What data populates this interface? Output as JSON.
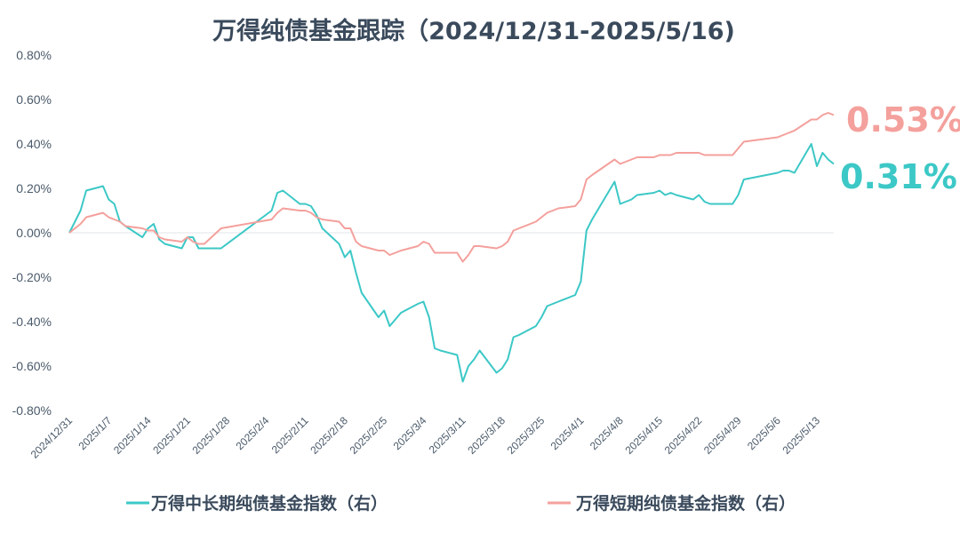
{
  "chart_data": {
    "type": "line",
    "title": "万得纯债基金跟踪（2024/12/31-2025/5/16)",
    "xlabel": "",
    "ylabel": "",
    "ylim": [
      -0.8,
      0.8
    ],
    "y_tick_labels": [
      "0.80%",
      "0.60%",
      "0.40%",
      "0.20%",
      "0.00%",
      "-0.20%",
      "-0.40%",
      "-0.60%",
      "-0.80%"
    ],
    "x_tick_labels": [
      "2024/12/31",
      "2025/1/7",
      "2025/1/14",
      "2025/1/21",
      "2025/1/28",
      "2025/2/4",
      "2025/2/11",
      "2025/2/18",
      "2025/2/25",
      "2025/3/4",
      "2025/3/11",
      "2025/3/18",
      "2025/3/25",
      "2025/4/1",
      "2025/4/8",
      "2025/4/15",
      "2025/4/22",
      "2025/4/29",
      "2025/5/6",
      "2025/5/13"
    ],
    "x_start": "2024-12-31",
    "x_end": "2025-05-16",
    "grid": false,
    "legend_position": "bottom",
    "end_labels": {
      "long": "0.31%",
      "short": "0.53%"
    },
    "series": [
      {
        "name": "万得中长期纯债基金指数（右）",
        "color": "#3cc8c6",
        "x": [
          "2024-12-31",
          "2025-01-02",
          "2025-01-03",
          "2025-01-06",
          "2025-01-07",
          "2025-01-08",
          "2025-01-09",
          "2025-01-10",
          "2025-01-13",
          "2025-01-14",
          "2025-01-15",
          "2025-01-16",
          "2025-01-17",
          "2025-01-20",
          "2025-01-21",
          "2025-01-22",
          "2025-01-23",
          "2025-01-24",
          "2025-01-27",
          "2025-02-05",
          "2025-02-06",
          "2025-02-07",
          "2025-02-10",
          "2025-02-11",
          "2025-02-12",
          "2025-02-13",
          "2025-02-14",
          "2025-02-17",
          "2025-02-18",
          "2025-02-19",
          "2025-02-20",
          "2025-02-21",
          "2025-02-24",
          "2025-02-25",
          "2025-02-26",
          "2025-02-27",
          "2025-02-28",
          "2025-03-03",
          "2025-03-04",
          "2025-03-05",
          "2025-03-06",
          "2025-03-07",
          "2025-03-10",
          "2025-03-11",
          "2025-03-12",
          "2025-03-13",
          "2025-03-14",
          "2025-03-17",
          "2025-03-18",
          "2025-03-19",
          "2025-03-20",
          "2025-03-21",
          "2025-03-24",
          "2025-03-25",
          "2025-03-26",
          "2025-03-27",
          "2025-03-28",
          "2025-03-31",
          "2025-04-01",
          "2025-04-02",
          "2025-04-03",
          "2025-04-07",
          "2025-04-08",
          "2025-04-09",
          "2025-04-10",
          "2025-04-11",
          "2025-04-14",
          "2025-04-15",
          "2025-04-16",
          "2025-04-17",
          "2025-04-18",
          "2025-04-21",
          "2025-04-22",
          "2025-04-23",
          "2025-04-24",
          "2025-04-25",
          "2025-04-28",
          "2025-04-29",
          "2025-04-30",
          "2025-05-06",
          "2025-05-07",
          "2025-05-08",
          "2025-05-09",
          "2025-05-12",
          "2025-05-13",
          "2025-05-14",
          "2025-05-15",
          "2025-05-16"
        ],
        "values": [
          0.0,
          0.1,
          0.19,
          0.21,
          0.15,
          0.13,
          0.05,
          0.03,
          -0.02,
          0.02,
          0.04,
          -0.03,
          -0.05,
          -0.07,
          -0.02,
          -0.02,
          -0.07,
          -0.07,
          -0.07,
          0.1,
          0.18,
          0.19,
          0.13,
          0.13,
          0.12,
          0.08,
          0.02,
          -0.05,
          -0.11,
          -0.08,
          -0.18,
          -0.27,
          -0.38,
          -0.35,
          -0.42,
          -0.39,
          -0.36,
          -0.32,
          -0.31,
          -0.38,
          -0.52,
          -0.53,
          -0.55,
          -0.67,
          -0.6,
          -0.57,
          -0.53,
          -0.63,
          -0.61,
          -0.57,
          -0.47,
          -0.46,
          -0.42,
          -0.38,
          -0.33,
          -0.32,
          -0.31,
          -0.28,
          -0.22,
          0.01,
          0.06,
          0.23,
          0.13,
          0.14,
          0.15,
          0.17,
          0.18,
          0.19,
          0.17,
          0.18,
          0.17,
          0.15,
          0.17,
          0.14,
          0.13,
          0.13,
          0.13,
          0.17,
          0.24,
          0.27,
          0.28,
          0.28,
          0.27,
          0.4,
          0.3,
          0.36,
          0.33,
          0.31
        ]
      },
      {
        "name": "万得短期纯债基金指数（右）",
        "color": "#f4a09c",
        "x": [
          "2024-12-31",
          "2025-01-02",
          "2025-01-03",
          "2025-01-06",
          "2025-01-07",
          "2025-01-08",
          "2025-01-09",
          "2025-01-10",
          "2025-01-13",
          "2025-01-14",
          "2025-01-15",
          "2025-01-16",
          "2025-01-17",
          "2025-01-20",
          "2025-01-21",
          "2025-01-22",
          "2025-01-23",
          "2025-01-24",
          "2025-01-27",
          "2025-02-05",
          "2025-02-06",
          "2025-02-07",
          "2025-02-10",
          "2025-02-11",
          "2025-02-12",
          "2025-02-13",
          "2025-02-14",
          "2025-02-17",
          "2025-02-18",
          "2025-02-19",
          "2025-02-20",
          "2025-02-21",
          "2025-02-24",
          "2025-02-25",
          "2025-02-26",
          "2025-02-27",
          "2025-02-28",
          "2025-03-03",
          "2025-03-04",
          "2025-03-05",
          "2025-03-06",
          "2025-03-07",
          "2025-03-10",
          "2025-03-11",
          "2025-03-12",
          "2025-03-13",
          "2025-03-14",
          "2025-03-17",
          "2025-03-18",
          "2025-03-19",
          "2025-03-20",
          "2025-03-21",
          "2025-03-24",
          "2025-03-25",
          "2025-03-26",
          "2025-03-27",
          "2025-03-28",
          "2025-03-31",
          "2025-04-01",
          "2025-04-02",
          "2025-04-03",
          "2025-04-07",
          "2025-04-08",
          "2025-04-09",
          "2025-04-10",
          "2025-04-11",
          "2025-04-14",
          "2025-04-15",
          "2025-04-16",
          "2025-04-17",
          "2025-04-18",
          "2025-04-21",
          "2025-04-22",
          "2025-04-23",
          "2025-04-24",
          "2025-04-25",
          "2025-04-28",
          "2025-04-29",
          "2025-04-30",
          "2025-05-06",
          "2025-05-07",
          "2025-05-08",
          "2025-05-09",
          "2025-05-12",
          "2025-05-13",
          "2025-05-14",
          "2025-05-15",
          "2025-05-16"
        ],
        "values": [
          0.0,
          0.04,
          0.07,
          0.09,
          0.07,
          0.06,
          0.05,
          0.03,
          0.02,
          0.01,
          0.01,
          -0.02,
          -0.03,
          -0.04,
          -0.02,
          -0.04,
          -0.05,
          -0.05,
          0.02,
          0.06,
          0.09,
          0.11,
          0.1,
          0.1,
          0.09,
          0.07,
          0.06,
          0.05,
          0.02,
          0.02,
          -0.04,
          -0.06,
          -0.08,
          -0.08,
          -0.1,
          -0.09,
          -0.08,
          -0.06,
          -0.04,
          -0.05,
          -0.09,
          -0.09,
          -0.09,
          -0.13,
          -0.1,
          -0.06,
          -0.06,
          -0.07,
          -0.06,
          -0.04,
          0.01,
          0.02,
          0.05,
          0.07,
          0.09,
          0.1,
          0.11,
          0.12,
          0.15,
          0.24,
          0.26,
          0.33,
          0.31,
          0.32,
          0.33,
          0.34,
          0.34,
          0.35,
          0.35,
          0.35,
          0.36,
          0.36,
          0.36,
          0.35,
          0.35,
          0.35,
          0.35,
          0.38,
          0.41,
          0.43,
          0.44,
          0.45,
          0.46,
          0.51,
          0.51,
          0.53,
          0.54,
          0.53
        ]
      }
    ]
  }
}
